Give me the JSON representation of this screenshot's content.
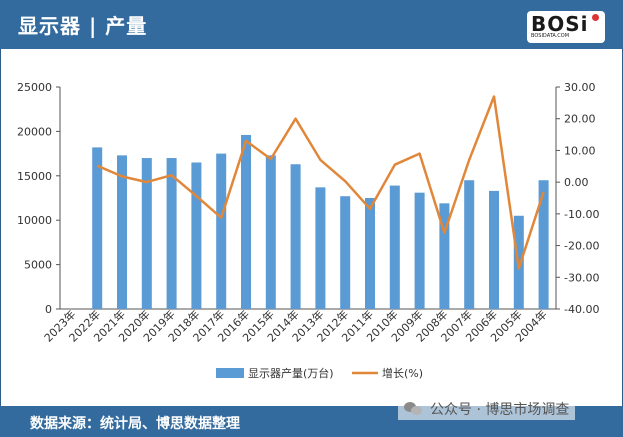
{
  "header": {
    "title": "显示器 | 产量"
  },
  "logo": {
    "text": "BOSi",
    "sub": "BOSIDATA.COM"
  },
  "footer": {
    "text": "数据来源：统计局、博思数据整理"
  },
  "wechat": {
    "text": "公众号 · 博思市场调查"
  },
  "colors": {
    "bar": "#5b9bd5",
    "line": "#e0873a",
    "header": "#336b9e"
  },
  "chart_data": {
    "type": "bar",
    "categories": [
      "2023年",
      "2022年",
      "2021年",
      "2020年",
      "2019年",
      "2018年",
      "2017年",
      "2016年",
      "2015年",
      "2014年",
      "2013年",
      "2012年",
      "2011年",
      "2010年",
      "2009年",
      "2008年",
      "2007年",
      "2006年",
      "2005年",
      "2004年"
    ],
    "series": [
      {
        "name": "显示器产量(万台)",
        "type": "bar",
        "axis": "left",
        "values": [
          null,
          18200,
          17300,
          17000,
          17000,
          16500,
          17500,
          19600,
          17300,
          16300,
          13700,
          12700,
          12500,
          13900,
          13100,
          11900,
          14500,
          13300,
          10500,
          14500
        ]
      },
      {
        "name": "增长(%)",
        "type": "line",
        "axis": "right",
        "values": [
          null,
          5.2,
          1.8,
          0.0,
          2.2,
          -4.4,
          -11.2,
          13.0,
          7.3,
          20.0,
          7.0,
          0.3,
          -8.4,
          5.5,
          9.0,
          -16.0,
          7.0,
          27.0,
          -27.2,
          -3.1
        ]
      }
    ],
    "left_axis": {
      "ylim": [
        0,
        25000
      ],
      "ticks": [
        "0",
        "5000",
        "10000",
        "15000",
        "20000",
        "25000"
      ]
    },
    "right_axis": {
      "ylim": [
        -40,
        30
      ],
      "ticks": [
        "-40.00",
        "-30.00",
        "-20.00",
        "-10.00",
        "0.00",
        "10.00",
        "20.00",
        "30.00"
      ]
    },
    "legend": {
      "position": "bottom",
      "items": [
        "显示器产量(万台)",
        "增长(%)"
      ]
    },
    "grid": false
  }
}
